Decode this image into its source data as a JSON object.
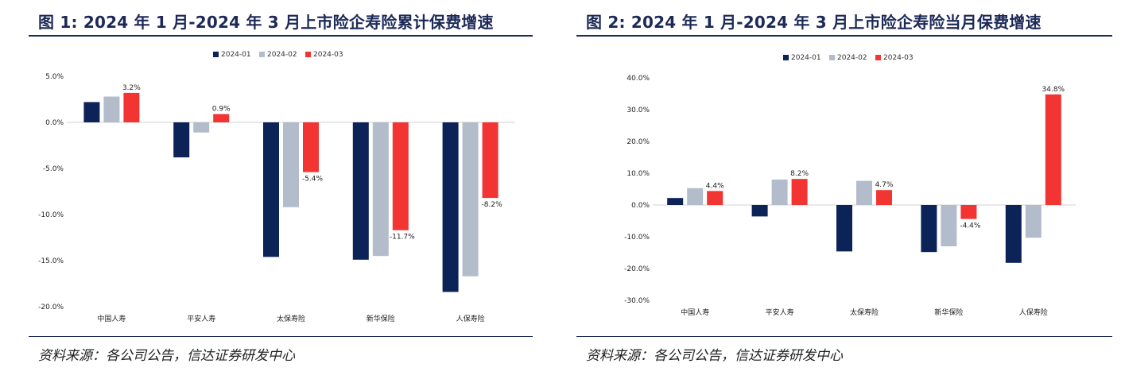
{
  "panels": [
    {
      "title": "图 1:  2024 年 1 月-2024 年 3 月上市险企寿险累计保费增速",
      "source": "资料来源：各公司公告，信达证券研发中心"
    },
    {
      "title": "图 2:  2024 年 1 月-2024 年 3 月上市险企寿险当月保费增速",
      "source": "资料来源：各公司公告，信达证券研发中心"
    }
  ],
  "colors": {
    "2024-01": "#0c2357",
    "2024-02": "#b3bccb",
    "2024-03": "#f23433",
    "title": "#1d2a57"
  },
  "chart_data": [
    {
      "type": "bar",
      "categories": [
        "中国人寿",
        "平安人寿",
        "太保寿险",
        "新华保险",
        "人保寿险"
      ],
      "series": [
        {
          "name": "2024-01",
          "values": [
            2.2,
            -3.8,
            -14.6,
            -14.9,
            -18.4
          ]
        },
        {
          "name": "2024-02",
          "values": [
            2.8,
            -1.1,
            -9.2,
            -14.5,
            -16.7
          ]
        },
        {
          "name": "2024-03",
          "values": [
            3.2,
            0.9,
            -5.4,
            -11.7,
            -8.2
          ]
        }
      ],
      "data_labels": [
        "3.2%",
        "0.9%",
        "-5.4%",
        "-11.7%",
        "-8.2%"
      ],
      "ylim": [
        -20,
        5
      ],
      "yticks": [
        5,
        0,
        -5,
        -10,
        -15,
        -20
      ],
      "ytick_labels": [
        "5.0%",
        "0.0%",
        "-5.0%",
        "-10.0%",
        "-15.0%",
        "-20.0%"
      ],
      "legend": "top-center",
      "grid": false
    },
    {
      "type": "bar",
      "categories": [
        "中国人寿",
        "平安人寿",
        "太保寿险",
        "新华保险",
        "人保寿险"
      ],
      "series": [
        {
          "name": "2024-01",
          "values": [
            2.2,
            -3.6,
            -14.6,
            -14.8,
            -18.2
          ]
        },
        {
          "name": "2024-02",
          "values": [
            5.3,
            8.0,
            7.6,
            -13.0,
            -10.3
          ]
        },
        {
          "name": "2024-03",
          "values": [
            4.4,
            8.2,
            4.7,
            -4.4,
            34.8
          ]
        }
      ],
      "data_labels": [
        "4.4%",
        "8.2%",
        "4.7%",
        "-4.4%",
        "34.8%"
      ],
      "ylim": [
        -30,
        40
      ],
      "yticks": [
        40,
        30,
        20,
        10,
        0,
        -10,
        -20,
        -30
      ],
      "ytick_labels": [
        "40.0%",
        "30.0%",
        "20.0%",
        "10.0%",
        "0.0%",
        "-10.0%",
        "-20.0%",
        "-30.0%"
      ],
      "legend": "top-center",
      "grid": false
    }
  ]
}
